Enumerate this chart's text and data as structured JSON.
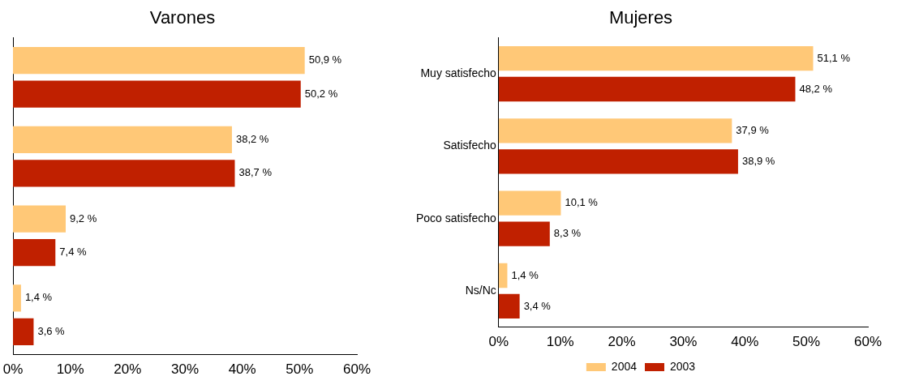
{
  "chart_data": [
    {
      "type": "bar",
      "orientation": "horizontal",
      "title": "Varones",
      "categories": [
        null,
        null,
        null,
        null
      ],
      "series": [
        {
          "color": "#ffc877",
          "values": [
            50.9,
            38.2,
            9.2,
            1.4
          ],
          "value_labels": [
            "50,9 %",
            "38,2 %",
            "9,2 %",
            "1,4 %"
          ]
        },
        {
          "color": "#c02000",
          "values": [
            50.2,
            38.7,
            7.4,
            3.6
          ],
          "value_labels": [
            "50,2 %",
            "38,7 %",
            "7,4 %",
            "3,6 %"
          ]
        }
      ],
      "xlim": [
        0,
        60
      ],
      "xticks": [
        {
          "value": 0,
          "label": "0%"
        },
        {
          "value": 10,
          "label": "10%"
        },
        {
          "value": 20,
          "label": "20%"
        },
        {
          "value": 30,
          "label": "30%"
        },
        {
          "value": 40,
          "label": "40%"
        },
        {
          "value": 50,
          "label": "50%"
        },
        {
          "value": 60,
          "label": "60%"
        }
      ],
      "grid": false,
      "legend": false
    },
    {
      "type": "bar",
      "orientation": "horizontal",
      "title": "Mujeres",
      "categories": [
        "Muy satisfecho",
        "Satisfecho",
        "Poco satisfecho",
        "Ns/Nc"
      ],
      "series": [
        {
          "name": "2004",
          "color": "#ffc877",
          "values": [
            51.1,
            37.9,
            10.1,
            1.4
          ],
          "value_labels": [
            "51,1 %",
            "37,9 %",
            "10,1 %",
            "1,4 %"
          ]
        },
        {
          "name": "2003",
          "color": "#c02000",
          "values": [
            48.2,
            38.9,
            8.3,
            3.4
          ],
          "value_labels": [
            "48,2 %",
            "38,9 %",
            "8,3 %",
            "3,4 %"
          ]
        }
      ],
      "xlim": [
        0,
        60
      ],
      "xticks": [
        {
          "value": 0,
          "label": "0%"
        },
        {
          "value": 10,
          "label": "10%"
        },
        {
          "value": 20,
          "label": "20%"
        },
        {
          "value": 30,
          "label": "30%"
        },
        {
          "value": 40,
          "label": "40%"
        },
        {
          "value": 50,
          "label": "50%"
        },
        {
          "value": 60,
          "label": "60%"
        }
      ],
      "grid": false,
      "legend": "bottom"
    }
  ]
}
